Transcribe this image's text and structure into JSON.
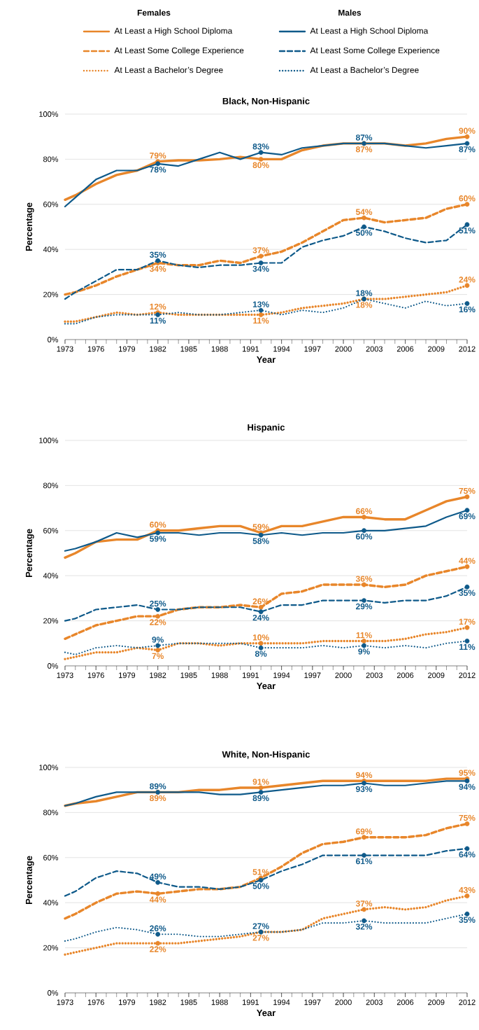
{
  "chart_data": [
    {
      "type": "line",
      "title": "Black, Non-Hispanic",
      "xlabel": "Year",
      "ylabel": "Percentage",
      "annotations": [
        "Females",
        "Males"
      ],
      "legend": "top",
      "grid": "y",
      "x": [
        1973,
        1974,
        1976,
        1978,
        1980,
        1982,
        1984,
        1986,
        1988,
        1990,
        1992,
        1994,
        1996,
        1998,
        2000,
        2002,
        2004,
        2006,
        2008,
        2010,
        2012
      ],
      "xlim": [
        1973,
        2012
      ],
      "xticks": [
        1973,
        1976,
        1979,
        1982,
        1985,
        1988,
        1991,
        1994,
        1997,
        2000,
        2003,
        2006,
        2009,
        2012
      ],
      "ylim": [
        0,
        100
      ],
      "yticks": [
        {
          "value": 0,
          "label": "0%"
        },
        {
          "value": 20,
          "label": "20%"
        },
        {
          "value": 40,
          "label": "40%"
        },
        {
          "value": 60,
          "label": "60%"
        },
        {
          "value": 80,
          "label": "80%"
        },
        {
          "value": 100,
          "label": "100%"
        }
      ],
      "series": [
        {
          "name": "At Least a High School Diploma",
          "color": "#e8862a",
          "line_style": "solid",
          "values": [
            62,
            64,
            69,
            73,
            75,
            79,
            79.5,
            79.5,
            80,
            81,
            80,
            80,
            84,
            86,
            87,
            87,
            87,
            86,
            87,
            89,
            90
          ],
          "value_labels": [
            null,
            null,
            null,
            null,
            null,
            "79%",
            null,
            null,
            null,
            null,
            "80%",
            null,
            null,
            null,
            null,
            "87%",
            null,
            null,
            null,
            null,
            "90%"
          ]
        },
        {
          "name": "At Least Some College Experience",
          "color": "#e8862a",
          "line_style": "dashed",
          "values": [
            20,
            21,
            24,
            28,
            31,
            34,
            33,
            33,
            35,
            34,
            37,
            39,
            43,
            48,
            53,
            54,
            52,
            53,
            54,
            58,
            60
          ],
          "value_labels": [
            null,
            null,
            null,
            null,
            null,
            "34%",
            null,
            null,
            null,
            null,
            "37%",
            null,
            null,
            null,
            null,
            "54%",
            null,
            null,
            null,
            null,
            "60%"
          ]
        },
        {
          "name": "At Least a Bachelor’s Degree",
          "color": "#e8862a",
          "line_style": "dotted",
          "values": [
            8,
            8,
            10,
            12,
            11,
            12,
            11,
            11,
            11,
            11,
            11,
            12,
            14,
            15,
            16,
            18,
            18,
            19,
            20,
            21,
            24
          ],
          "value_labels": [
            null,
            null,
            null,
            null,
            null,
            "12%",
            null,
            null,
            null,
            null,
            "11%",
            null,
            null,
            null,
            null,
            "18%",
            null,
            null,
            null,
            null,
            "24%"
          ]
        },
        {
          "name": "At Least a High School Diploma",
          "color": "#0f5a8a",
          "line_style": "solid",
          "values": [
            59,
            63,
            71,
            75,
            75,
            78,
            77,
            80,
            83,
            80,
            83,
            82,
            85,
            86,
            87,
            87,
            87,
            86,
            85,
            86,
            87
          ],
          "value_labels": [
            null,
            null,
            null,
            null,
            null,
            "78%",
            null,
            null,
            null,
            null,
            "83%",
            null,
            null,
            null,
            null,
            "87%",
            null,
            null,
            null,
            null,
            "87%"
          ]
        },
        {
          "name": "At Least Some College Experience",
          "color": "#0f5a8a",
          "line_style": "dashed",
          "values": [
            18,
            21,
            26,
            31,
            31,
            35,
            33,
            32,
            33,
            33,
            34,
            34,
            41,
            44,
            46,
            50,
            48,
            45,
            43,
            44,
            51
          ],
          "value_labels": [
            null,
            null,
            null,
            null,
            null,
            "35%",
            null,
            null,
            null,
            null,
            "34%",
            null,
            null,
            null,
            null,
            "50%",
            null,
            null,
            null,
            null,
            "51%"
          ]
        },
        {
          "name": "At Least a Bachelor’s Degree",
          "color": "#0f5a8a",
          "line_style": "dotted",
          "values": [
            7,
            7,
            10,
            11,
            11,
            11,
            12,
            11,
            11,
            12,
            13,
            11,
            13,
            12,
            14,
            18,
            16,
            14,
            17,
            15,
            16
          ],
          "value_labels": [
            null,
            null,
            null,
            null,
            null,
            "11%",
            null,
            null,
            null,
            null,
            "13%",
            null,
            null,
            null,
            null,
            "18%",
            null,
            null,
            null,
            null,
            "16%"
          ]
        }
      ]
    },
    {
      "type": "line",
      "title": "Hispanic",
      "xlabel": "Year",
      "ylabel": "Percentage",
      "grid": "y",
      "x": [
        1973,
        1974,
        1976,
        1978,
        1980,
        1982,
        1984,
        1986,
        1988,
        1990,
        1992,
        1994,
        1996,
        1998,
        2000,
        2002,
        2004,
        2006,
        2008,
        2010,
        2012
      ],
      "xlim": [
        1973,
        2012
      ],
      "xticks": [
        1973,
        1976,
        1979,
        1982,
        1985,
        1988,
        1991,
        1994,
        1997,
        2000,
        2003,
        2006,
        2009,
        2012
      ],
      "ylim": [
        0,
        100
      ],
      "yticks": [
        {
          "value": 0,
          "label": "0%"
        },
        {
          "value": 20,
          "label": "20%"
        },
        {
          "value": 40,
          "label": "40%"
        },
        {
          "value": 60,
          "label": "60%"
        },
        {
          "value": 80,
          "label": "80%"
        },
        {
          "value": 100,
          "label": "100%"
        }
      ],
      "series": [
        {
          "color": "#e8862a",
          "line_style": "solid",
          "values": [
            48,
            50,
            55,
            56,
            56,
            60,
            60,
            61,
            62,
            62,
            59,
            62,
            62,
            64,
            66,
            66,
            65,
            65,
            69,
            73,
            75
          ],
          "value_labels": [
            null,
            null,
            null,
            null,
            null,
            "60%",
            null,
            null,
            null,
            null,
            "59%",
            null,
            null,
            null,
            null,
            "66%",
            null,
            null,
            null,
            null,
            "75%"
          ]
        },
        {
          "color": "#e8862a",
          "line_style": "dashed",
          "values": [
            12,
            14,
            18,
            20,
            22,
            22,
            25,
            26,
            26,
            27,
            26,
            32,
            33,
            36,
            36,
            36,
            35,
            36,
            40,
            42,
            44
          ],
          "value_labels": [
            null,
            null,
            null,
            null,
            null,
            "22%",
            null,
            null,
            null,
            null,
            "26%",
            null,
            null,
            null,
            null,
            "36%",
            null,
            null,
            null,
            null,
            "44%"
          ]
        },
        {
          "color": "#e8862a",
          "line_style": "dotted",
          "values": [
            3,
            4,
            6,
            6,
            8,
            7,
            10,
            10,
            9,
            10,
            10,
            10,
            10,
            11,
            11,
            11,
            11,
            12,
            14,
            15,
            17
          ],
          "value_labels": [
            null,
            null,
            null,
            null,
            null,
            "7%",
            null,
            null,
            null,
            null,
            "10%",
            null,
            null,
            null,
            null,
            "11%",
            null,
            null,
            null,
            null,
            "17%"
          ]
        },
        {
          "color": "#0f5a8a",
          "line_style": "solid",
          "values": [
            51,
            52,
            55,
            59,
            57,
            59,
            59,
            58,
            59,
            59,
            58,
            59,
            58,
            59,
            59,
            60,
            60,
            61,
            62,
            66,
            69
          ],
          "value_labels": [
            null,
            null,
            null,
            null,
            null,
            "59%",
            null,
            null,
            null,
            null,
            "58%",
            null,
            null,
            null,
            null,
            "60%",
            null,
            null,
            null,
            null,
            "69%"
          ]
        },
        {
          "color": "#0f5a8a",
          "line_style": "dashed",
          "values": [
            20,
            21,
            25,
            26,
            27,
            25,
            25,
            26,
            26,
            26,
            24,
            27,
            27,
            29,
            29,
            29,
            28,
            29,
            29,
            31,
            35
          ],
          "value_labels": [
            null,
            null,
            null,
            null,
            null,
            "25%",
            null,
            null,
            null,
            null,
            "24%",
            null,
            null,
            null,
            null,
            "29%",
            null,
            null,
            null,
            null,
            "35%"
          ]
        },
        {
          "color": "#0f5a8a",
          "line_style": "dotted",
          "values": [
            6,
            5,
            8,
            9,
            8,
            9,
            10,
            10,
            10,
            10,
            8,
            8,
            8,
            9,
            8,
            9,
            8,
            9,
            8,
            10,
            11
          ],
          "value_labels": [
            null,
            null,
            null,
            null,
            null,
            "9%",
            null,
            null,
            null,
            null,
            "8%",
            null,
            null,
            null,
            null,
            "9%",
            null,
            null,
            null,
            null,
            "11%"
          ]
        }
      ]
    },
    {
      "type": "line",
      "title": "White, Non-Hispanic",
      "xlabel": "Year",
      "ylabel": "Percentage",
      "grid": "y",
      "x": [
        1973,
        1974,
        1976,
        1978,
        1980,
        1982,
        1984,
        1986,
        1988,
        1990,
        1992,
        1994,
        1996,
        1998,
        2000,
        2002,
        2004,
        2006,
        2008,
        2010,
        2012
      ],
      "xlim": [
        1973,
        2012
      ],
      "xticks": [
        1973,
        1976,
        1979,
        1982,
        1985,
        1988,
        1991,
        1994,
        1997,
        2000,
        2003,
        2006,
        2009,
        2012
      ],
      "ylim": [
        0,
        100
      ],
      "yticks": [
        {
          "value": 0,
          "label": "0%"
        },
        {
          "value": 20,
          "label": "20%"
        },
        {
          "value": 40,
          "label": "40%"
        },
        {
          "value": 60,
          "label": "60%"
        },
        {
          "value": 80,
          "label": "80%"
        },
        {
          "value": 100,
          "label": "100%"
        }
      ],
      "series": [
        {
          "color": "#e8862a",
          "line_style": "solid",
          "values": [
            83,
            84,
            85,
            87,
            89,
            89,
            89,
            90,
            90,
            91,
            91,
            92,
            93,
            94,
            94,
            94,
            94,
            94,
            94,
            95,
            95
          ],
          "value_labels": [
            null,
            null,
            null,
            null,
            null,
            "89%",
            null,
            null,
            null,
            null,
            "91%",
            null,
            null,
            null,
            null,
            "94%",
            null,
            null,
            null,
            null,
            "95%"
          ]
        },
        {
          "color": "#e8862a",
          "line_style": "dashed",
          "values": [
            33,
            35,
            40,
            44,
            45,
            44,
            45,
            46,
            46,
            47,
            51,
            56,
            62,
            66,
            67,
            69,
            69,
            69,
            70,
            73,
            75
          ],
          "value_labels": [
            null,
            null,
            null,
            null,
            null,
            "44%",
            null,
            null,
            null,
            null,
            "51%",
            null,
            null,
            null,
            null,
            "69%",
            null,
            null,
            null,
            null,
            "75%"
          ]
        },
        {
          "color": "#e8862a",
          "line_style": "dotted",
          "values": [
            17,
            18,
            20,
            22,
            22,
            22,
            22,
            23,
            24,
            25,
            27,
            27,
            28,
            33,
            35,
            37,
            38,
            37,
            38,
            41,
            43
          ],
          "value_labels": [
            null,
            null,
            null,
            null,
            null,
            "22%",
            null,
            null,
            null,
            null,
            "27%",
            null,
            null,
            null,
            null,
            "37%",
            null,
            null,
            null,
            null,
            "43%"
          ]
        },
        {
          "color": "#0f5a8a",
          "line_style": "solid",
          "values": [
            83,
            84,
            87,
            89,
            89,
            89,
            89,
            89,
            88,
            88,
            89,
            90,
            91,
            92,
            92,
            93,
            92,
            92,
            93,
            94,
            94
          ],
          "value_labels": [
            null,
            null,
            null,
            null,
            null,
            "89%",
            null,
            null,
            null,
            null,
            "89%",
            null,
            null,
            null,
            null,
            "93%",
            null,
            null,
            null,
            null,
            "94%"
          ]
        },
        {
          "color": "#0f5a8a",
          "line_style": "dashed",
          "values": [
            43,
            45,
            51,
            54,
            53,
            49,
            47,
            47,
            46,
            47,
            50,
            54,
            57,
            61,
            61,
            61,
            61,
            61,
            61,
            63,
            64
          ],
          "value_labels": [
            null,
            null,
            null,
            null,
            null,
            "49%",
            null,
            null,
            null,
            null,
            "50%",
            null,
            null,
            null,
            null,
            "61%",
            null,
            null,
            null,
            null,
            "64%"
          ]
        },
        {
          "color": "#0f5a8a",
          "line_style": "dotted",
          "values": [
            23,
            24,
            27,
            29,
            28,
            26,
            26,
            25,
            25,
            26,
            27,
            27,
            28,
            31,
            31,
            32,
            31,
            31,
            31,
            33,
            35
          ],
          "value_labels": [
            null,
            null,
            null,
            null,
            null,
            "26%",
            null,
            null,
            null,
            null,
            "27%",
            null,
            null,
            null,
            null,
            "32%",
            null,
            null,
            null,
            null,
            "35%"
          ]
        }
      ]
    }
  ]
}
